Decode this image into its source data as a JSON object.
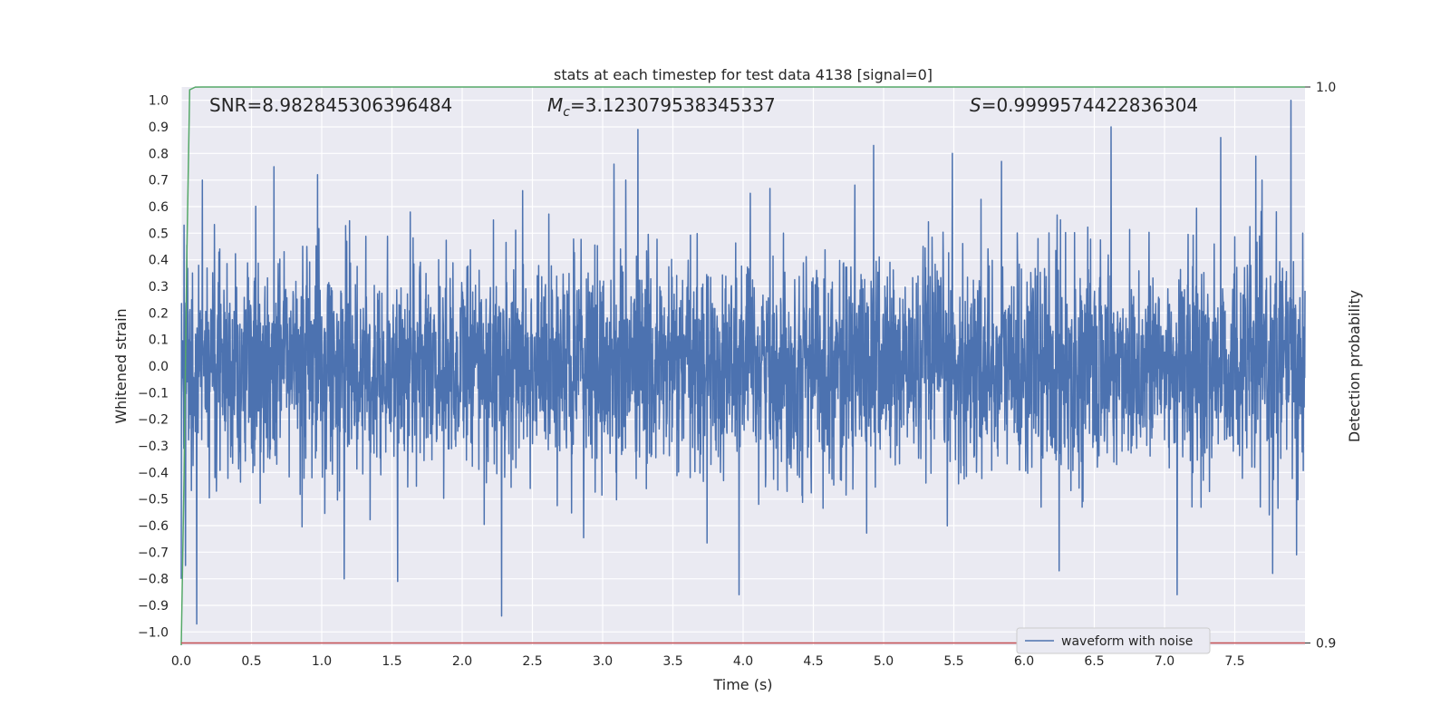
{
  "chart_data": {
    "type": "line",
    "title": "stats at each timestep for test data 4138 [signal=0]",
    "xlabel": "Time (s)",
    "ylabel": "Whitened strain",
    "y2label": "Detection probability",
    "xlim": [
      0.0,
      8.0
    ],
    "ylim": [
      -1.05,
      1.05
    ],
    "y2lim": [
      0.8996,
      1.0
    ],
    "xticks": [
      "0.0",
      "0.5",
      "1.0",
      "1.5",
      "2.0",
      "2.5",
      "3.0",
      "3.5",
      "4.0",
      "4.5",
      "5.0",
      "5.5",
      "6.0",
      "6.5",
      "7.0",
      "7.5"
    ],
    "yticks": [
      "-1.0",
      "-0.9",
      "-0.8",
      "-0.7",
      "-0.6",
      "-0.5",
      "-0.4",
      "-0.3",
      "-0.2",
      "-0.1",
      "0.0",
      "0.1",
      "0.2",
      "0.3",
      "0.4",
      "0.5",
      "0.6",
      "0.7",
      "0.8",
      "0.9",
      "1.0"
    ],
    "y2ticks": [
      "0.9",
      "1.0"
    ],
    "grid": true,
    "legend_position": "lower-right",
    "annotations": {
      "snr": "SNR=8.982845306396484",
      "mc_symbol": "M",
      "mc_sub": "c",
      "mc_value": "=3.123079538345337",
      "s_symbol": "S",
      "s_value": "=0.9999574422836304"
    },
    "series": [
      {
        "name": "waveform with noise",
        "axis": "left",
        "color": "#4c72b0",
        "noise_sigma": 0.2,
        "samples": 4000,
        "peaks": [
          {
            "x": 0.0,
            "y": -0.8
          },
          {
            "x": 0.02,
            "y": 0.53
          },
          {
            "x": 0.03,
            "y": -0.75
          },
          {
            "x": 0.08,
            "y": 0.35
          },
          {
            "x": 0.11,
            "y": -0.97
          },
          {
            "x": 0.15,
            "y": 0.7
          },
          {
            "x": 0.66,
            "y": 0.75
          },
          {
            "x": 0.97,
            "y": 0.72
          },
          {
            "x": 1.16,
            "y": -0.8
          },
          {
            "x": 1.54,
            "y": -0.81
          },
          {
            "x": 2.28,
            "y": -0.94
          },
          {
            "x": 2.43,
            "y": 0.66
          },
          {
            "x": 3.08,
            "y": 0.76
          },
          {
            "x": 3.25,
            "y": 0.89
          },
          {
            "x": 3.97,
            "y": -0.86
          },
          {
            "x": 4.93,
            "y": 0.83
          },
          {
            "x": 5.49,
            "y": 0.8
          },
          {
            "x": 5.84,
            "y": 0.77
          },
          {
            "x": 6.25,
            "y": -0.77
          },
          {
            "x": 6.62,
            "y": 0.9
          },
          {
            "x": 7.09,
            "y": -0.86
          },
          {
            "x": 7.4,
            "y": 0.86
          },
          {
            "x": 7.65,
            "y": 0.79
          },
          {
            "x": 7.77,
            "y": -0.78
          },
          {
            "x": 7.9,
            "y": 1.0
          },
          {
            "x": 7.94,
            "y": -0.71
          }
        ]
      },
      {
        "name": "",
        "axis": "right",
        "color": "#55a868",
        "x": [
          0.0,
          0.02,
          0.04,
          0.06,
          0.1,
          0.15,
          0.5,
          1.0,
          2.0,
          4.0,
          6.0,
          8.0
        ],
        "y": [
          0.8996,
          0.93,
          0.97,
          0.9995,
          0.99998,
          1.0,
          1.0,
          1.0,
          1.0,
          1.0,
          1.0,
          1.0
        ]
      },
      {
        "name": "",
        "axis": "right",
        "color": "#c44e52",
        "x": [
          0.0,
          8.0
        ],
        "y": [
          0.9,
          0.9
        ]
      }
    ]
  }
}
